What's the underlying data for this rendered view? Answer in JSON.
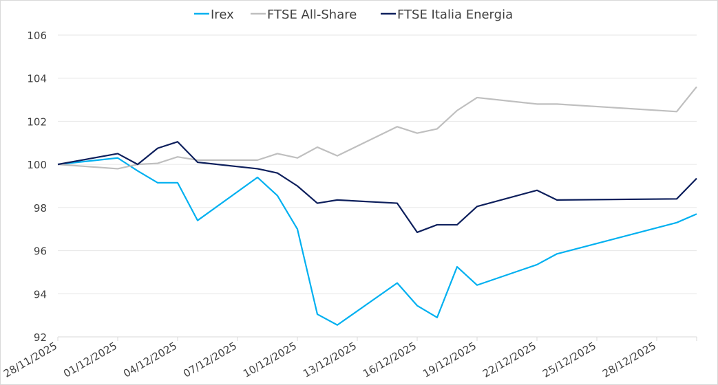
{
  "chart_data": {
    "type": "line",
    "title": "",
    "xlabel": "",
    "ylabel": "",
    "ylim": [
      92,
      106
    ],
    "yticks": [
      "92",
      "94",
      "96",
      "98",
      "100",
      "102",
      "104",
      "106"
    ],
    "grid": "horizontal",
    "legend_position": "top-center",
    "xtick_labels": [
      "28/11/2025",
      "01/12/2025",
      "04/12/2025",
      "07/12/2025",
      "10/12/2025",
      "13/12/2025",
      "16/12/2025",
      "19/12/2025",
      "22/12/2025",
      "25/12/2025",
      "28/12/2025"
    ],
    "xtick_days": [
      0,
      3,
      6,
      9,
      12,
      15,
      18,
      21,
      24,
      27,
      30
    ],
    "x_days": [
      0,
      3,
      4,
      5,
      6,
      7,
      10,
      11,
      12,
      13,
      14,
      17,
      18,
      19,
      20,
      21,
      24,
      25,
      31,
      32
    ],
    "x_day_origin": "28/11/2025",
    "series": [
      {
        "name": "Irex",
        "color": "#00b0f0",
        "values": [
          100,
          100.3,
          99.7,
          99.15,
          99.15,
          97.4,
          99.4,
          98.55,
          97.0,
          93.05,
          92.55,
          94.5,
          93.45,
          92.9,
          95.25,
          94.4,
          95.35,
          95.85,
          97.3,
          97.7
        ]
      },
      {
        "name": "FTSE All-Share",
        "color": "#bfbfbf",
        "values": [
          100,
          99.8,
          100.0,
          100.05,
          100.35,
          100.2,
          100.2,
          100.5,
          100.3,
          100.8,
          100.4,
          101.75,
          101.45,
          101.65,
          102.5,
          103.1,
          102.8,
          102.8,
          102.45,
          103.6
        ]
      },
      {
        "name": "FTSE Italia Energia",
        "color": "#0d1f5c",
        "values": [
          100,
          100.5,
          100.0,
          100.75,
          101.05,
          100.1,
          99.8,
          99.6,
          99.0,
          98.2,
          98.35,
          98.2,
          96.85,
          97.2,
          97.2,
          98.05,
          98.8,
          98.35,
          98.4,
          99.35
        ]
      }
    ]
  }
}
